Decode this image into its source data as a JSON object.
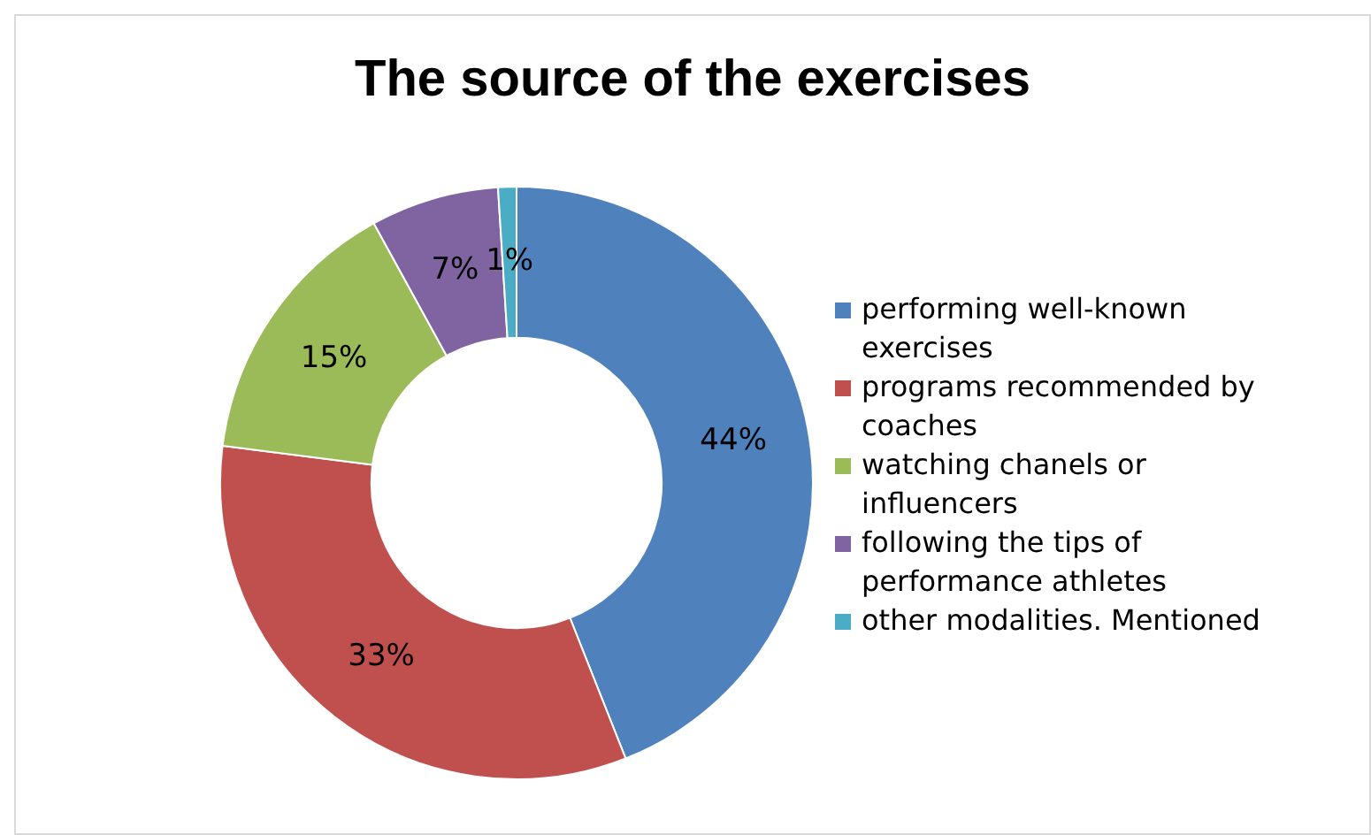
{
  "chart_data": {
    "type": "donut",
    "title": "The source of the exercises",
    "categories": [
      "performing well-known exercises",
      "programs recommended by coaches",
      "watching chanels or influencers",
      "following the tips of performance athletes",
      "other modalities. Mentioned"
    ],
    "values": [
      44,
      33,
      15,
      7,
      1
    ],
    "colors": [
      "#4f81bd",
      "#c0504d",
      "#9bbb59",
      "#8064a2",
      "#4bacc6"
    ],
    "value_labels": [
      "44%",
      "33%",
      "15%",
      "7%",
      "1%"
    ],
    "legend": "right"
  }
}
